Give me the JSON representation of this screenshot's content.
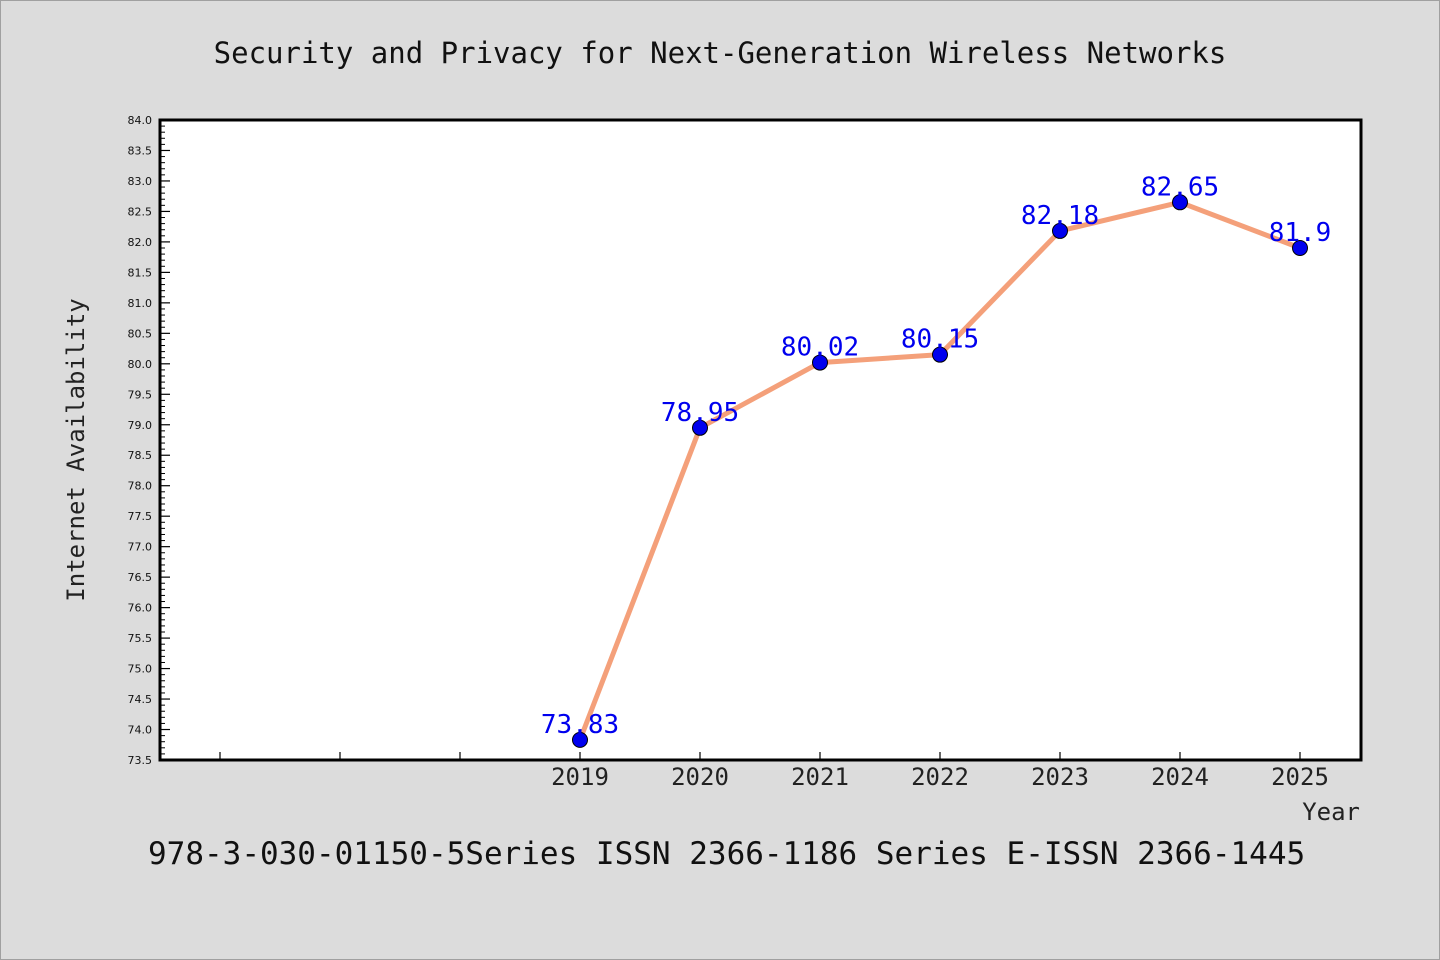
{
  "chart_data": {
    "type": "line",
    "title": "Security and Privacy for Next-Generation Wireless Networks",
    "xlabel": "Year",
    "ylabel": "Internet Availability",
    "categories": [
      "2019",
      "2020",
      "2021",
      "2022",
      "2023",
      "2024",
      "2025"
    ],
    "values": [
      73.83,
      78.95,
      80.02,
      80.15,
      82.18,
      82.65,
      81.9
    ],
    "data_labels": [
      "73.83",
      "78.95",
      "80.02",
      "80.15",
      "82.18",
      "82.65",
      "81.9"
    ],
    "ylim": [
      73.5,
      84.0
    ],
    "yticks": [
      "73.5",
      "74.0",
      "74.5",
      "75.0",
      "75.5",
      "76.0",
      "76.5",
      "77.0",
      "77.5",
      "78.0",
      "78.5",
      "79.0",
      "79.5",
      "80.0",
      "80.5",
      "81.0",
      "81.5",
      "82.0",
      "82.5",
      "83.0",
      "83.5",
      "84.0"
    ],
    "grid": false,
    "legend": "none",
    "line_color": "#f4a07a",
    "marker_color": "#0000ee",
    "label_color": "#0000ee",
    "background": "#dcdcdc",
    "plot_background": "#ffffff"
  },
  "footer": "978-3-030-01150-5Series ISSN 2366-1186 Series E-ISSN 2366-1445"
}
